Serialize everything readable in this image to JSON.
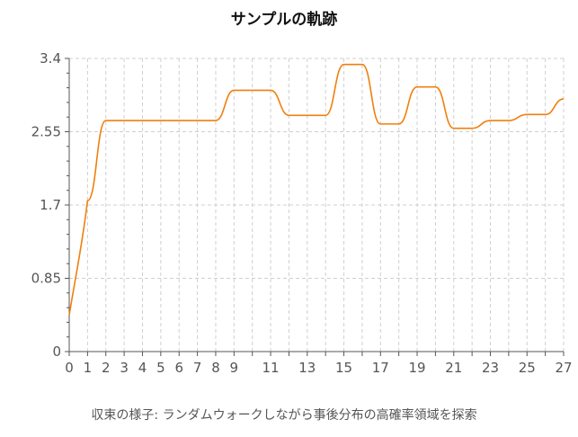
{
  "chart_data": {
    "type": "line",
    "title": "サンプルの軌跡",
    "xlabel": "収束の様子: ランダムウォークしながら事後分布の高確率領域を探索",
    "ylabel": "",
    "xlim": [
      0,
      27
    ],
    "ylim": [
      0,
      3.4
    ],
    "x_ticks": [
      "0",
      "1",
      "2",
      "3",
      "4",
      "5",
      "6",
      "7",
      "8",
      "9",
      "11",
      "13",
      "15",
      "17",
      "19",
      "21",
      "23",
      "25",
      "27"
    ],
    "y_ticks": [
      "0",
      "0.85",
      "1.7",
      "2.55",
      "3.4"
    ],
    "grid": true,
    "series": [
      {
        "color": "#f07f0e",
        "x": [
          0,
          1,
          2,
          3,
          4,
          5,
          6,
          7,
          8,
          9,
          10,
          11,
          12,
          13,
          14,
          15,
          16,
          17,
          18,
          19,
          20,
          21,
          22,
          23,
          24,
          25,
          26,
          27
        ],
        "y": [
          0.42,
          1.75,
          2.68,
          2.68,
          2.68,
          2.68,
          2.68,
          2.68,
          2.68,
          3.03,
          3.03,
          3.03,
          2.74,
          2.74,
          2.74,
          3.33,
          3.33,
          2.64,
          2.64,
          3.07,
          3.07,
          2.59,
          2.59,
          2.68,
          2.68,
          2.75,
          2.75,
          2.93
        ]
      }
    ]
  }
}
